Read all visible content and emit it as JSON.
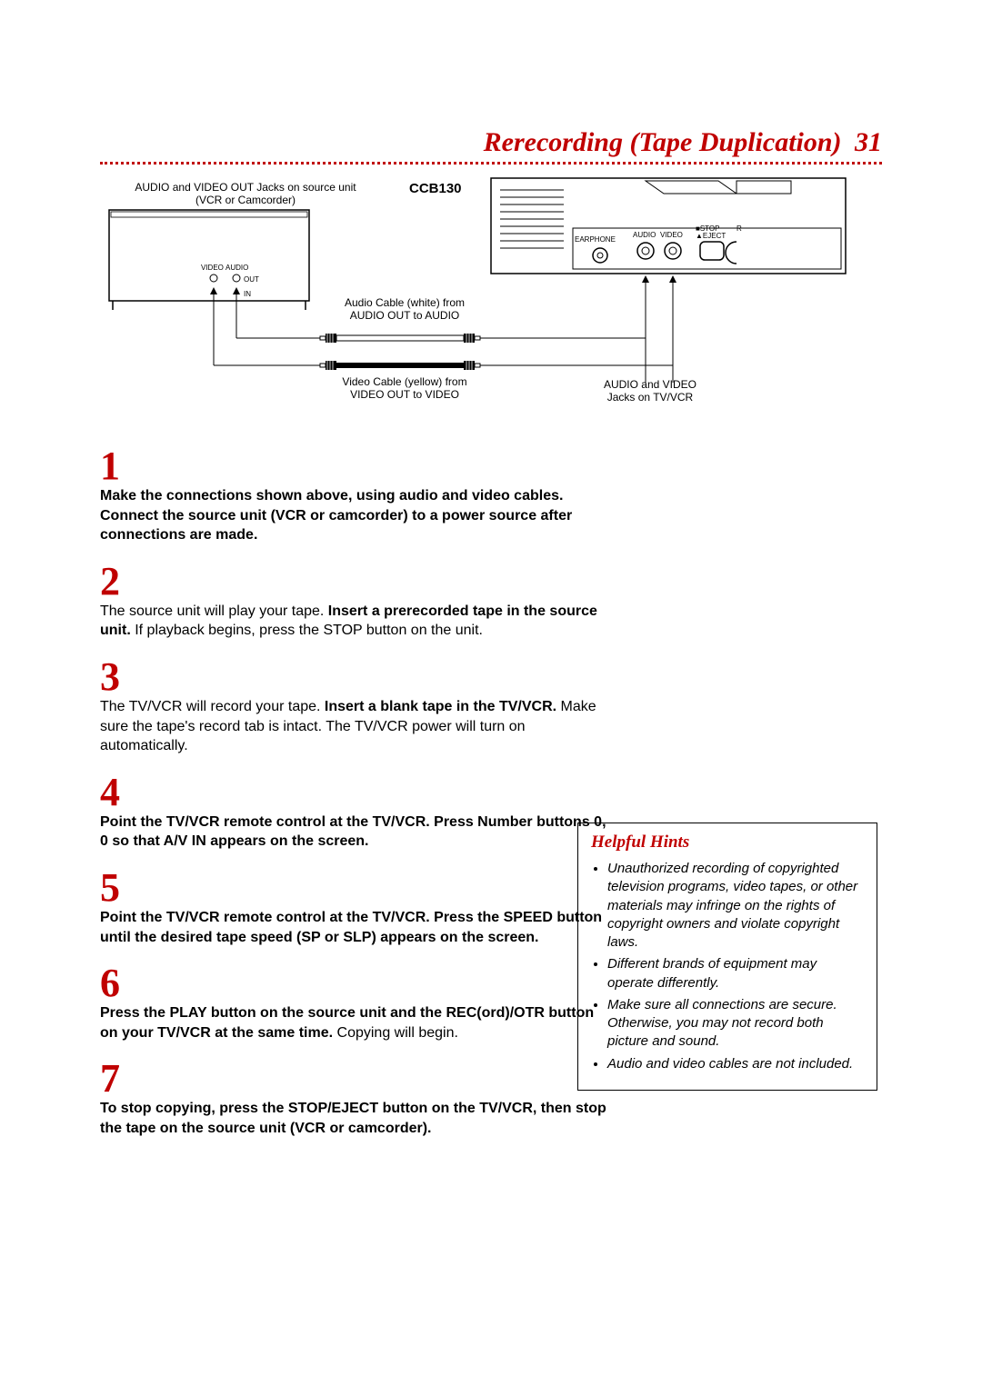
{
  "title": "Rerecording (Tape Duplication)",
  "page_number": "31",
  "colors": {
    "accent": "#c00000",
    "text": "#000000",
    "bg": "#ffffff"
  },
  "diagram": {
    "source_label_line1": "AUDIO and VIDEO OUT Jacks on source unit",
    "source_label_line2": "(VCR or Camcorder)",
    "model": "CCB130",
    "audio_cable_line1": "Audio Cable (white) from",
    "audio_cable_line2": "AUDIO OUT to AUDIO",
    "video_cable_line1": "Video Cable (yellow) from",
    "video_cable_line2": "VIDEO OUT to VIDEO",
    "tv_jacks_line1": "AUDIO and VIDEO",
    "tv_jacks_line2": "Jacks on TV/VCR",
    "port_video": "VIDEO",
    "port_audio": "AUDIO",
    "port_out": "OUT",
    "port_in": "IN",
    "earphone": "EARPHONE",
    "audio_label": "AUDIO",
    "video_label": "VIDEO",
    "stop_label": "■STOP",
    "eject_label": "▲EJECT",
    "r_label": "R"
  },
  "steps": [
    {
      "num": "1",
      "parts": [
        {
          "bold": true,
          "text": "Make the connections shown above, using audio and video cables. Connect the source unit (VCR or camcorder) to a power source after connections are made."
        }
      ]
    },
    {
      "num": "2",
      "parts": [
        {
          "bold": false,
          "text": "The source unit will play your tape. "
        },
        {
          "bold": true,
          "text": "Insert a prerecorded tape in the source unit."
        },
        {
          "bold": false,
          "text": " If playback begins, press the STOP button on the unit."
        }
      ]
    },
    {
      "num": "3",
      "parts": [
        {
          "bold": false,
          "text": "The TV/VCR will record your tape. "
        },
        {
          "bold": true,
          "text": "Insert a blank tape in the TV/VCR."
        },
        {
          "bold": false,
          "text": " Make sure the tape's record tab is intact. The TV/VCR power will turn on automatically."
        }
      ]
    },
    {
      "num": "4",
      "parts": [
        {
          "bold": true,
          "text": "Point the TV/VCR remote control at the TV/VCR. Press Number buttons 0, 0 so that A/V IN appears on the screen."
        }
      ]
    },
    {
      "num": "5",
      "parts": [
        {
          "bold": true,
          "text": "Point the TV/VCR remote control at the TV/VCR. Press the SPEED button until the desired tape speed (SP or SLP) appears on the screen."
        }
      ]
    },
    {
      "num": "6",
      "parts": [
        {
          "bold": true,
          "text": "Press the PLAY button on the source unit and the REC(ord)/OTR button on your TV/VCR at the same time."
        },
        {
          "bold": false,
          "text": " Copying will begin."
        }
      ]
    },
    {
      "num": "7",
      "parts": [
        {
          "bold": true,
          "text": "To stop copying, press the STOP/EJECT button on the TV/VCR, then stop the tape on the source unit (VCR or camcorder)."
        }
      ]
    }
  ],
  "hints": {
    "title": "Helpful Hints",
    "items": [
      "Unauthorized recording of copyrighted television programs, video tapes, or other materials may infringe on the rights of copyright owners and violate copyright laws.",
      "Different brands of equipment may operate differently.",
      "Make sure all connections are secure. Otherwise, you may not record both picture and sound.",
      "Audio and video cables are not included."
    ]
  }
}
